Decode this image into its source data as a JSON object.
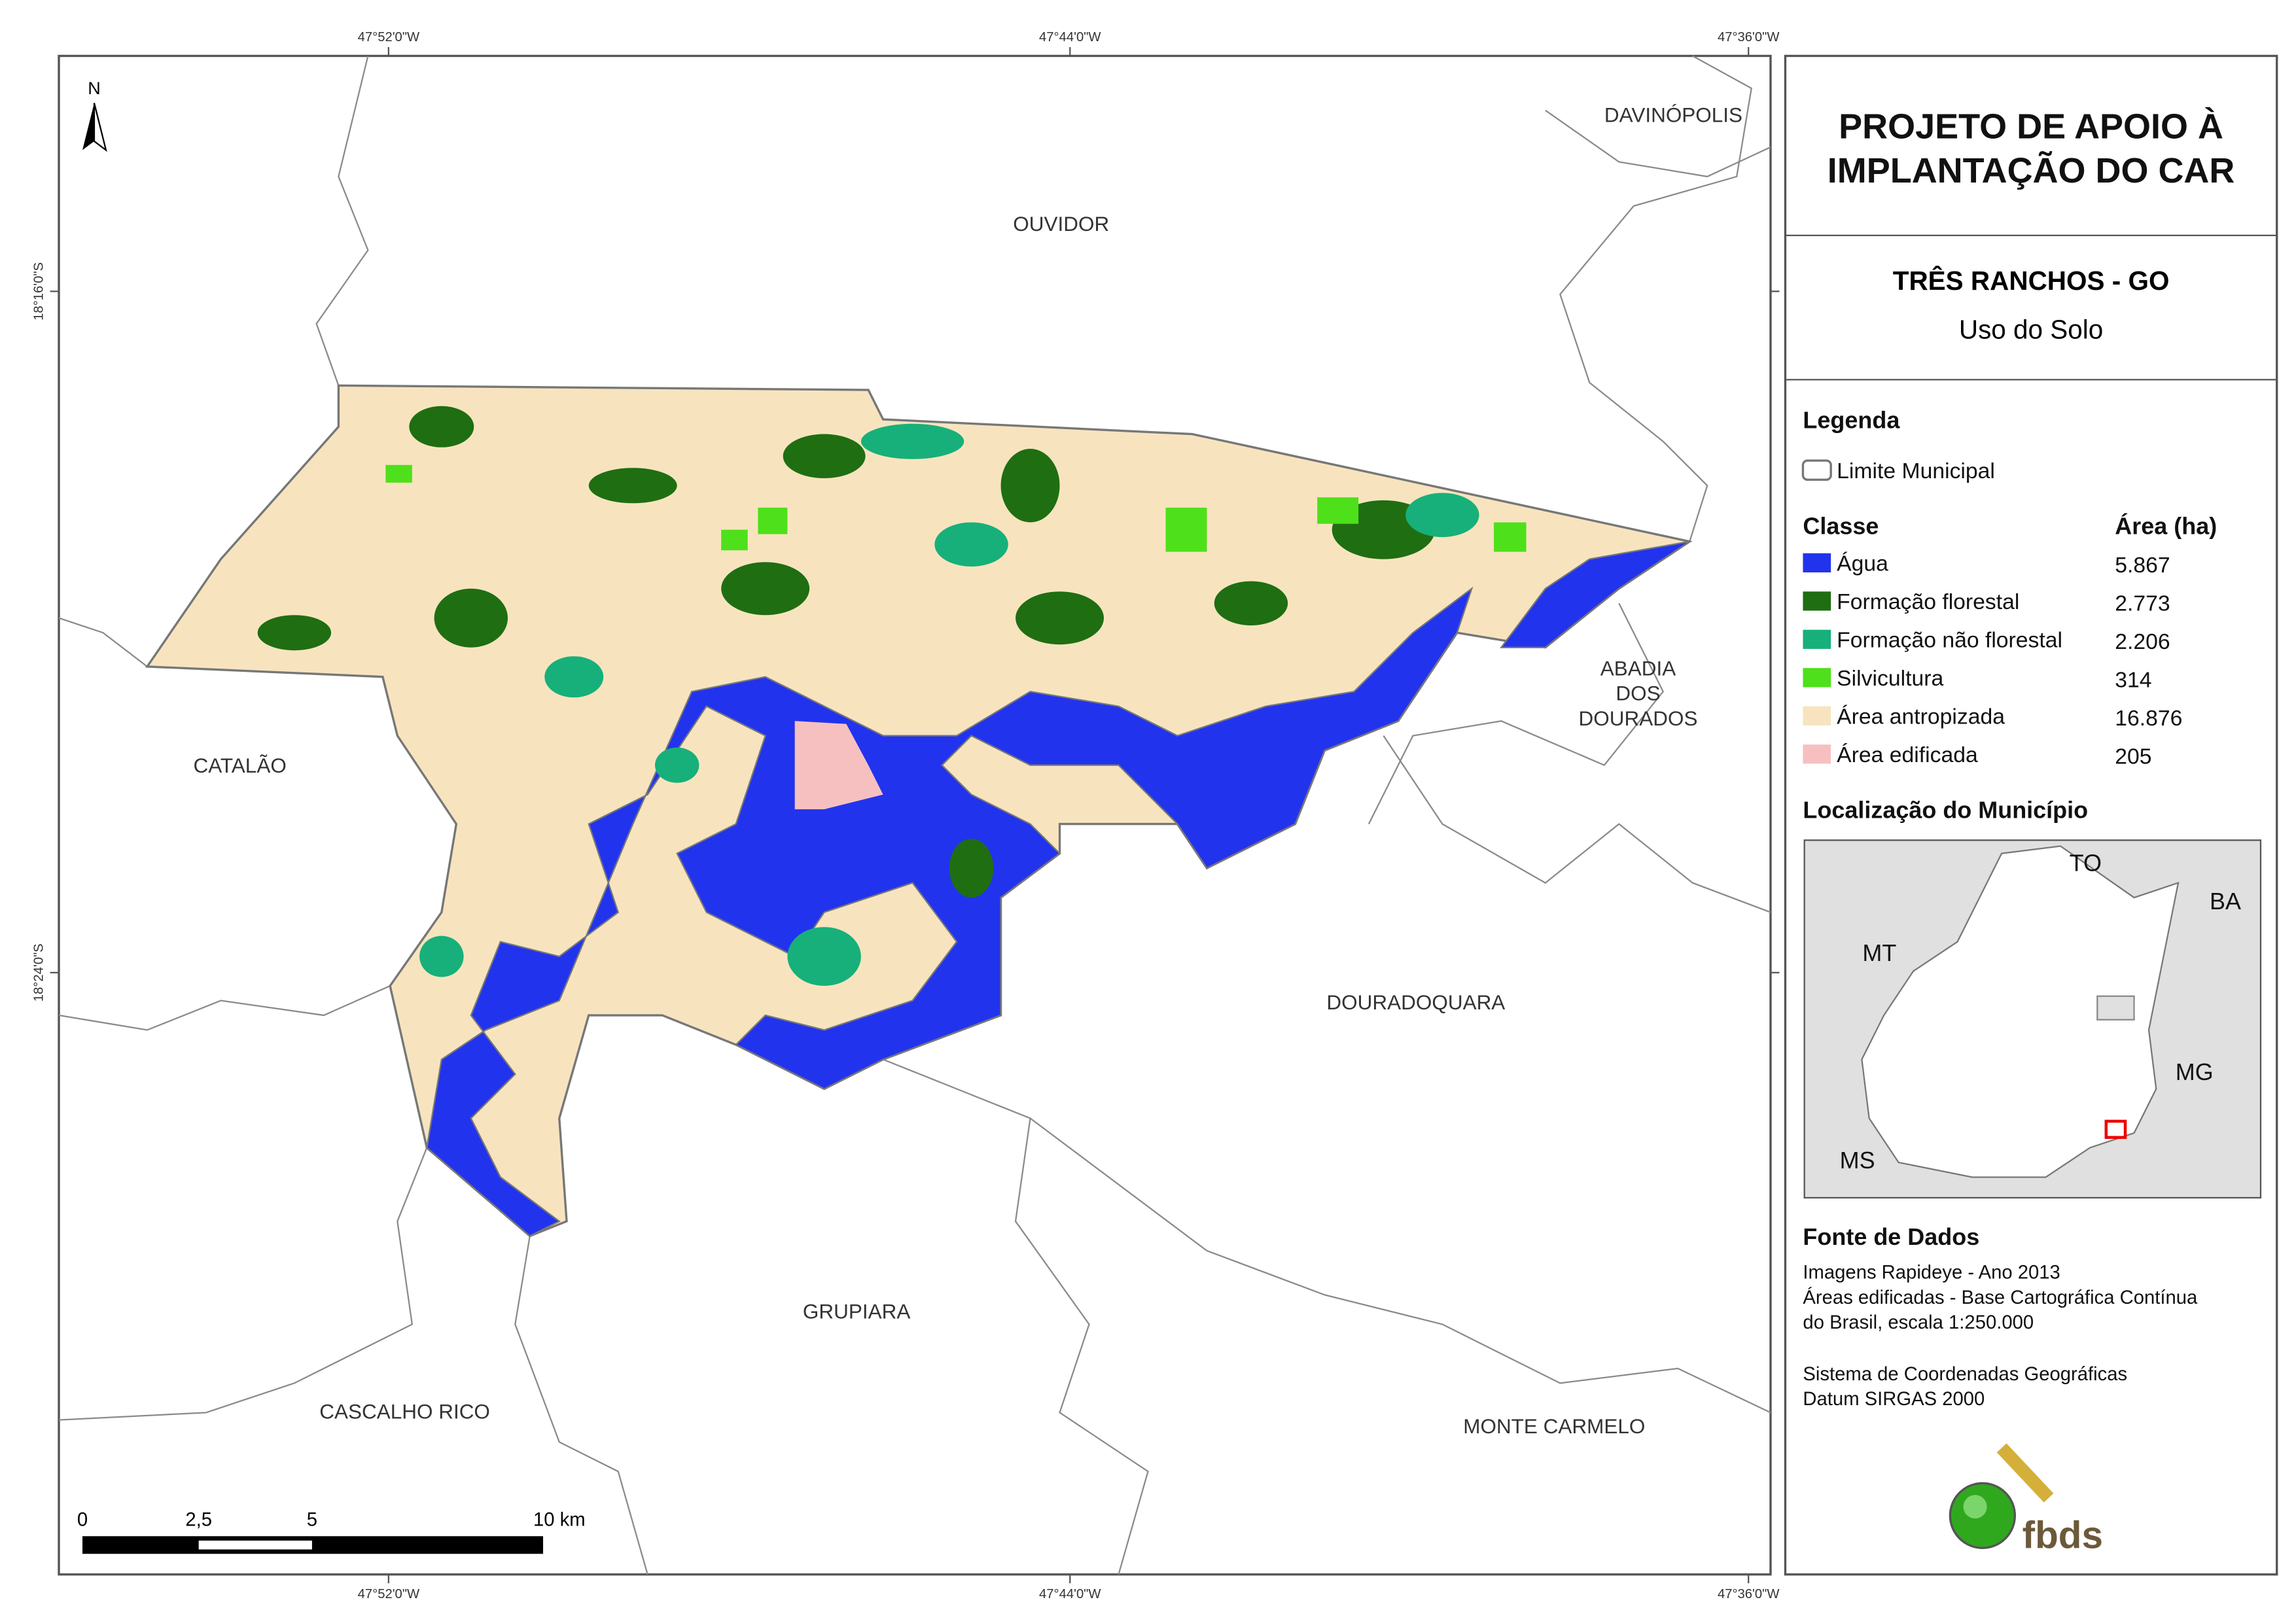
{
  "coordinates": {
    "top": [
      "47°52'0\"W",
      "47°44'0\"W",
      "47°36'0\"W"
    ],
    "bottom": [
      "47°52'0\"W",
      "47°44'0\"W",
      "47°36'0\"W"
    ],
    "left": [
      "18°16'0\"S",
      "18°24'0\"S"
    ]
  },
  "map": {
    "north": "N",
    "places": [
      "DAVINÓPOLIS",
      "OUVIDOR",
      "ABADIA",
      "DOS",
      "DOURADOS",
      "CATALÃO",
      "DOURADOQUARA",
      "GRUPIARA",
      "CASCALHO RICO",
      "MONTE CARMELO"
    ],
    "scale_bar": [
      "0",
      "2,5",
      "5",
      "10 km"
    ]
  },
  "panel": {
    "title": [
      "PROJETO DE APOIO À",
      "IMPLANTAÇÃO DO CAR"
    ],
    "municipality": "TRÊS RANCHOS - GO",
    "theme": "Uso do Solo",
    "legend": {
      "heading": "Legenda",
      "boundary": "Limite Municipal",
      "class_header": "Classe",
      "area_header": "Área (ha)",
      "classes": [
        {
          "name": "Água",
          "area": "5.867",
          "color": "#2233ee"
        },
        {
          "name": "Formação florestal",
          "area": "2.773",
          "color": "#1f6e12"
        },
        {
          "name": "Formação não florestal",
          "area": "2.206",
          "color": "#17b07a"
        },
        {
          "name": "Silvicultura",
          "area": "314",
          "color": "#4ee01a"
        },
        {
          "name": "Área antropizada",
          "area": "16.876",
          "color": "#f7e4bf"
        },
        {
          "name": "Área edificada",
          "area": "205",
          "color": "#f7c0c0"
        }
      ]
    },
    "location": {
      "heading": "Localização do Município",
      "states": [
        "TO",
        "BA",
        "MT",
        "MG",
        "MS"
      ]
    },
    "sources": {
      "heading": "Fonte de Dados",
      "lines": [
        "Imagens Rapideye - Ano 2013",
        "Áreas edificadas - Base Cartográfica Contínua",
        "do Brasil, escala 1:250.000",
        "Sistema de Coordenadas Geográficas",
        "Datum SIRGAS 2000"
      ]
    },
    "logo": "fbds"
  }
}
